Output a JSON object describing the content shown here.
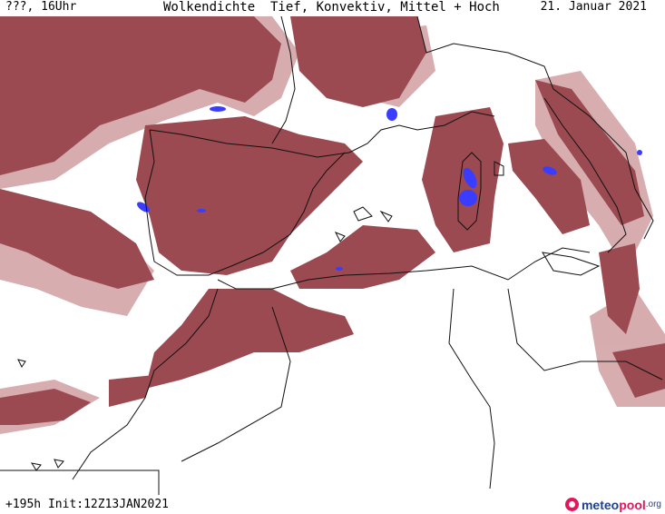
{
  "header": {
    "left": "???, 16Uhr",
    "title": "Wolkendichte  Tief, Konvektiv, Mittel + Hoch",
    "date": "21. Januar 2021"
  },
  "map": {
    "cloud_color": "#9a4a50",
    "cloud_light": "#d3a4a7",
    "convective_color": "#3a3cff",
    "border_color": "#111111"
  },
  "footer": {
    "run": "+195h Init:12Z13JAN2021",
    "brand_meteo": "meteo",
    "brand_pool": "pool",
    "brand_org": ".org"
  }
}
